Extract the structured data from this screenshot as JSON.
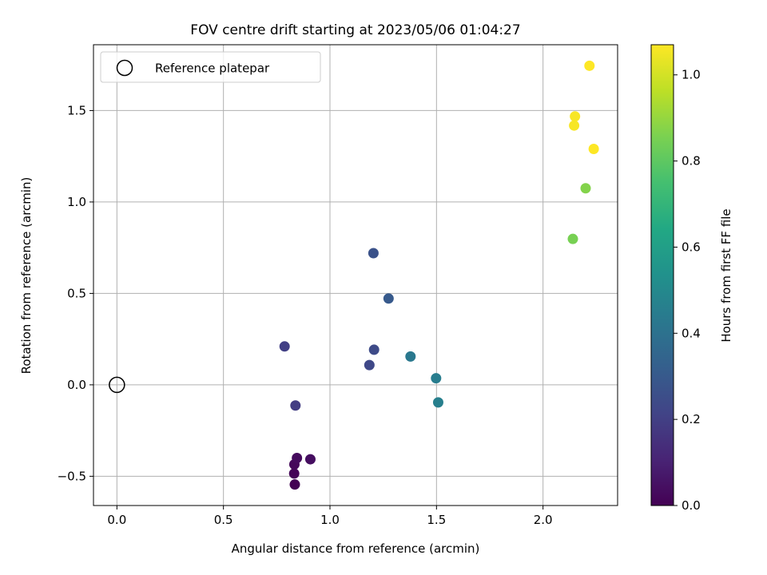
{
  "chart_data": {
    "type": "scatter",
    "title": "FOV centre drift starting at 2023/05/06 01:04:27",
    "xlabel": "Angular distance from reference (arcmin)",
    "ylabel": "Rotation from reference (arcmin)",
    "xlim": [
      -0.11,
      2.35
    ],
    "ylim": [
      -0.66,
      1.86
    ],
    "xticks": [
      0.0,
      0.5,
      1.0,
      1.5,
      2.0
    ],
    "xtick_labels": [
      "0.0",
      "0.5",
      "1.0",
      "1.5",
      "2.0"
    ],
    "yticks": [
      -0.5,
      0.0,
      0.5,
      1.0,
      1.5
    ],
    "ytick_labels": [
      "−0.5",
      "0.0",
      "0.5",
      "1.0",
      "1.5"
    ],
    "grid": true,
    "legend": {
      "position": "top-left",
      "entries": [
        "Reference platepar"
      ]
    },
    "reference_point": {
      "x": 0.0,
      "y": 0.0,
      "style": "hollow-black-circle"
    },
    "colorbar": {
      "label": "Hours from first FF file",
      "colormap": "viridis",
      "range": [
        0.0,
        1.07
      ],
      "ticks": [
        0.0,
        0.2,
        0.4,
        0.6,
        0.8,
        1.0
      ],
      "tick_labels": [
        "0.0",
        "0.2",
        "0.4",
        "0.6",
        "0.8",
        "1.0"
      ]
    },
    "points": [
      {
        "x": 0.835,
        "y": -0.545,
        "hours": 0.0
      },
      {
        "x": 0.832,
        "y": -0.485,
        "hours": 0.01
      },
      {
        "x": 0.833,
        "y": -0.435,
        "hours": 0.02
      },
      {
        "x": 0.845,
        "y": -0.4,
        "hours": 0.03
      },
      {
        "x": 0.908,
        "y": -0.407,
        "hours": 0.04
      },
      {
        "x": 0.838,
        "y": -0.113,
        "hours": 0.19
      },
      {
        "x": 0.787,
        "y": 0.21,
        "hours": 0.2
      },
      {
        "x": 1.185,
        "y": 0.108,
        "hours": 0.23
      },
      {
        "x": 1.207,
        "y": 0.192,
        "hours": 0.24
      },
      {
        "x": 1.204,
        "y": 0.72,
        "hours": 0.27
      },
      {
        "x": 1.275,
        "y": 0.472,
        "hours": 0.3
      },
      {
        "x": 1.378,
        "y": 0.155,
        "hours": 0.43
      },
      {
        "x": 1.498,
        "y": 0.036,
        "hours": 0.45
      },
      {
        "x": 1.508,
        "y": -0.096,
        "hours": 0.46
      },
      {
        "x": 2.14,
        "y": 0.798,
        "hours": 0.85
      },
      {
        "x": 2.2,
        "y": 1.075,
        "hours": 0.87
      },
      {
        "x": 2.146,
        "y": 1.418,
        "hours": 1.06
      },
      {
        "x": 2.15,
        "y": 1.468,
        "hours": 1.06
      },
      {
        "x": 2.238,
        "y": 1.29,
        "hours": 1.07
      },
      {
        "x": 2.218,
        "y": 1.745,
        "hours": 1.07
      }
    ]
  }
}
